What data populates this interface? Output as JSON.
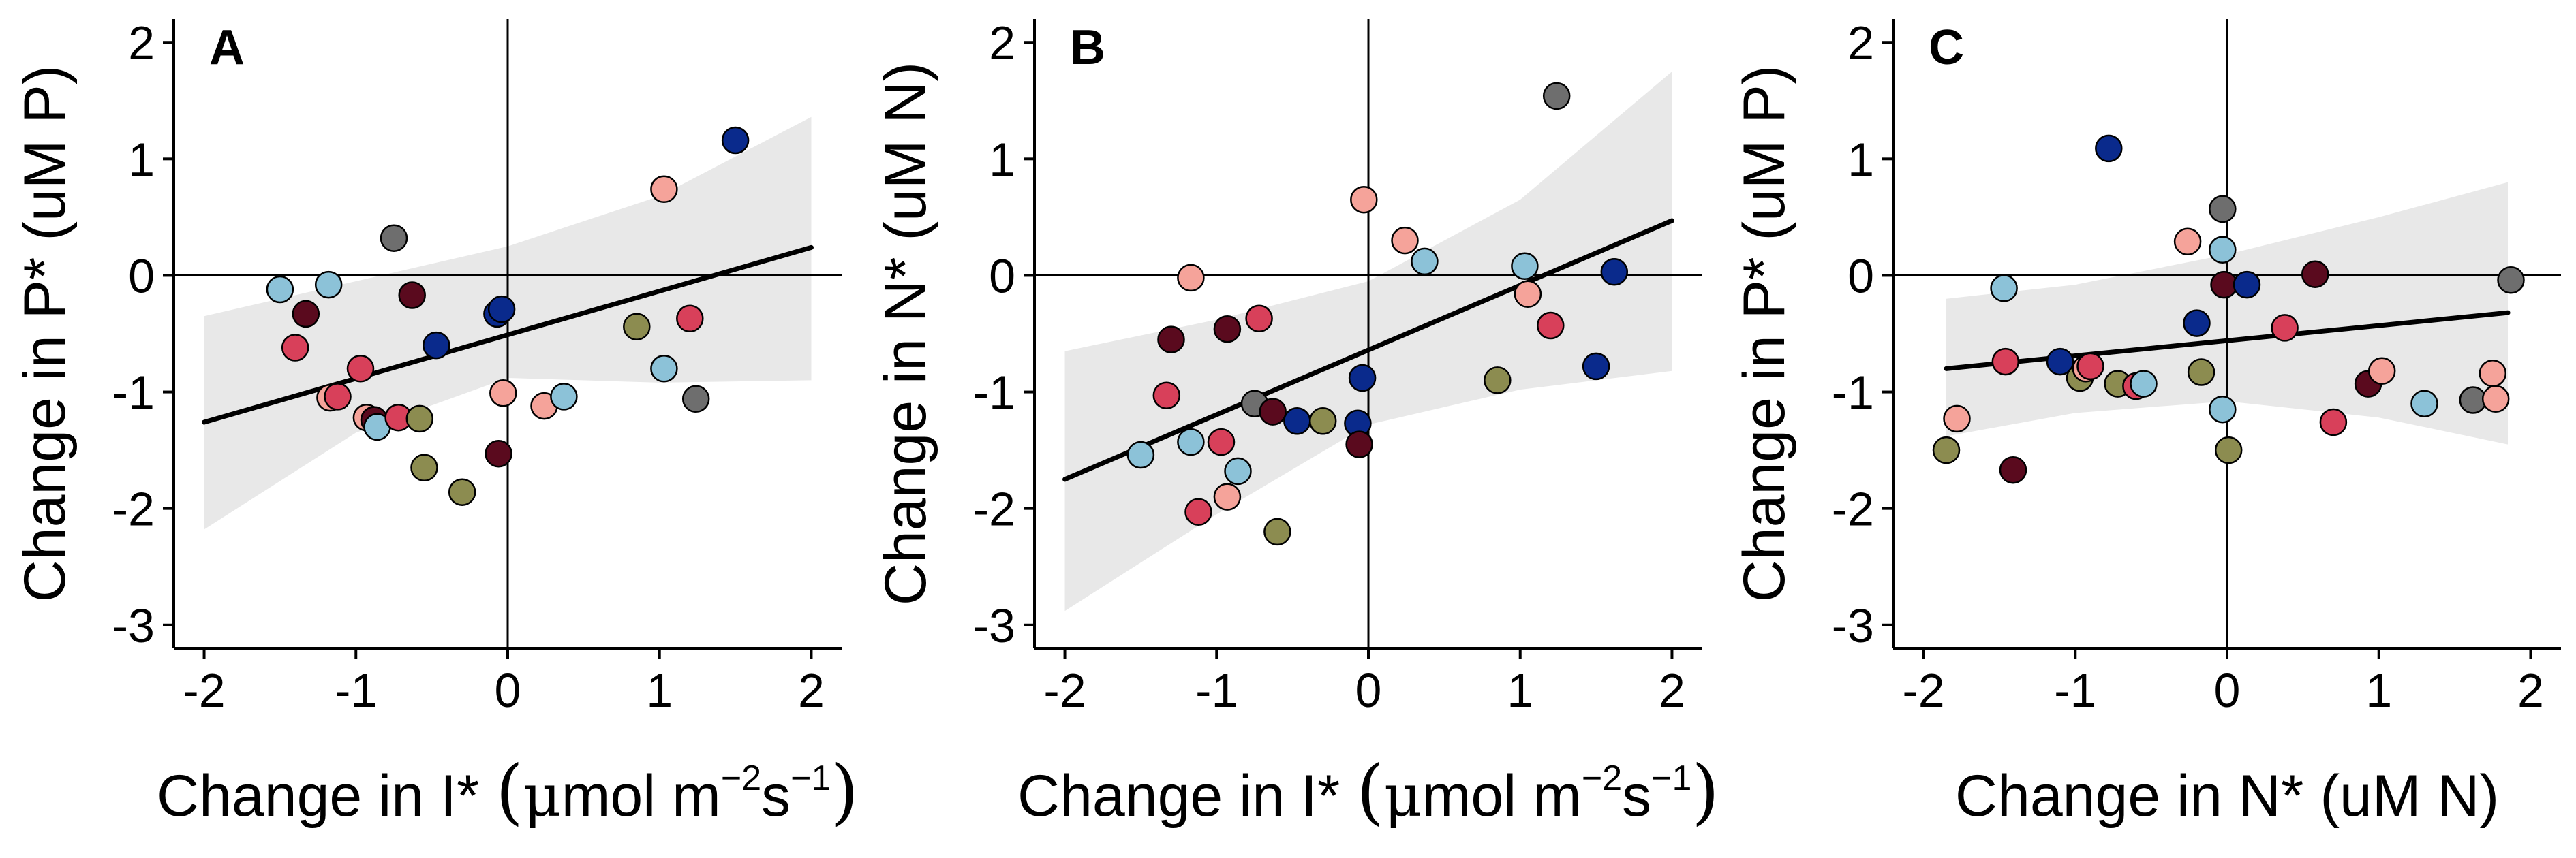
{
  "colors": {
    "olive": "#8c8c50",
    "navy": "#0a2a8c",
    "burgundy": "#5a0a1e",
    "grey": "#6e6e6e",
    "lightblue": "#8cc2d8",
    "salmon": "#f5a39a",
    "crimson": "#d8405a",
    "band": "#e8e8e8"
  },
  "chart_data": [
    {
      "type": "scatter",
      "panel": "A",
      "xlabel_parts": [
        "Change in I* ",
        "(",
        "μ",
        "mol m",
        "−2",
        "s",
        "−1",
        ")"
      ],
      "ylabel": "Change in P* (uM P)",
      "xlim": [
        -2.2,
        2.2
      ],
      "ylim": [
        -3.2,
        2.2
      ],
      "xticks": [
        -2,
        -1,
        0,
        1,
        2
      ],
      "yticks": [
        -3,
        -2,
        -1,
        0,
        1,
        2
      ],
      "tick_labels_x": [
        "-2",
        "-1",
        "0",
        "1",
        "2"
      ],
      "tick_labels_y": [
        "-3",
        "-2",
        "-1",
        "0",
        "1",
        "2"
      ],
      "fit": {
        "x": [
          -2.0,
          2.0
        ],
        "y": [
          -1.26,
          0.24
        ]
      },
      "band": {
        "x": [
          -2.0,
          -1.0,
          0.0,
          1.0,
          2.0
        ],
        "upper": [
          -0.35,
          -0.05,
          0.25,
          0.68,
          1.36
        ],
        "lower": [
          -2.18,
          -1.35,
          -0.88,
          -0.92,
          -0.9
        ]
      },
      "points": [
        {
          "x": -1.5,
          "y": -0.12,
          "c": "lightblue"
        },
        {
          "x": -1.18,
          "y": -0.08,
          "c": "lightblue"
        },
        {
          "x": -1.33,
          "y": -0.33,
          "c": "burgundy"
        },
        {
          "x": -1.4,
          "y": -0.62,
          "c": "crimson"
        },
        {
          "x": -0.75,
          "y": 0.32,
          "c": "grey"
        },
        {
          "x": -0.63,
          "y": -0.17,
          "c": "burgundy"
        },
        {
          "x": -1.17,
          "y": -1.05,
          "c": "salmon"
        },
        {
          "x": -1.12,
          "y": -1.04,
          "c": "crimson"
        },
        {
          "x": -0.97,
          "y": -0.8,
          "c": "crimson"
        },
        {
          "x": -0.93,
          "y": -1.22,
          "c": "salmon"
        },
        {
          "x": -0.88,
          "y": -1.24,
          "c": "burgundy"
        },
        {
          "x": -0.86,
          "y": -1.3,
          "c": "lightblue"
        },
        {
          "x": -0.72,
          "y": -1.22,
          "c": "crimson"
        },
        {
          "x": -0.58,
          "y": -1.23,
          "c": "olive"
        },
        {
          "x": -0.55,
          "y": -1.65,
          "c": "olive"
        },
        {
          "x": -0.47,
          "y": -0.6,
          "c": "navy"
        },
        {
          "x": -0.3,
          "y": -1.86,
          "c": "olive"
        },
        {
          "x": -0.07,
          "y": -0.33,
          "c": "navy"
        },
        {
          "x": -0.04,
          "y": -0.29,
          "c": "navy"
        },
        {
          "x": -0.06,
          "y": -1.53,
          "c": "burgundy"
        },
        {
          "x": -0.03,
          "y": -1.01,
          "c": "salmon"
        },
        {
          "x": 0.24,
          "y": -1.12,
          "c": "salmon"
        },
        {
          "x": 0.37,
          "y": -1.04,
          "c": "lightblue"
        },
        {
          "x": 0.85,
          "y": -0.44,
          "c": "olive"
        },
        {
          "x": 1.03,
          "y": 0.74,
          "c": "salmon"
        },
        {
          "x": 1.03,
          "y": -0.8,
          "c": "lightblue"
        },
        {
          "x": 1.2,
          "y": -0.37,
          "c": "crimson"
        },
        {
          "x": 1.24,
          "y": -1.06,
          "c": "grey"
        },
        {
          "x": 1.5,
          "y": 1.16,
          "c": "navy"
        }
      ]
    },
    {
      "type": "scatter",
      "panel": "B",
      "xlabel_parts": [
        "Change in I* ",
        "(",
        "μ",
        "mol m",
        "−2",
        "s",
        "−1",
        ")"
      ],
      "ylabel": "Change in N* (uM N)",
      "xlim": [
        -2.2,
        2.2
      ],
      "ylim": [
        -3.2,
        2.2
      ],
      "xticks": [
        -2,
        -1,
        0,
        1,
        2
      ],
      "yticks": [
        -3,
        -2,
        -1,
        0,
        1,
        2
      ],
      "tick_labels_x": [
        "-2",
        "-1",
        "0",
        "1",
        "2"
      ],
      "tick_labels_y": [
        "-3",
        "-2",
        "-1",
        "0",
        "1",
        "2"
      ],
      "fit": {
        "x": [
          -2.0,
          2.0
        ],
        "y": [
          -1.75,
          0.47
        ]
      },
      "band": {
        "x": [
          -2.0,
          -1.0,
          0.0,
          1.0,
          2.0
        ],
        "upper": [
          -0.65,
          -0.38,
          -0.05,
          0.65,
          1.75
        ],
        "lower": [
          -2.88,
          -2.05,
          -1.28,
          -0.98,
          -0.82
        ]
      },
      "points": [
        {
          "x": -1.5,
          "y": -1.54,
          "c": "lightblue"
        },
        {
          "x": -1.17,
          "y": -0.02,
          "c": "salmon"
        },
        {
          "x": -1.33,
          "y": -1.03,
          "c": "crimson"
        },
        {
          "x": -1.3,
          "y": -0.55,
          "c": "burgundy"
        },
        {
          "x": -1.17,
          "y": -1.43,
          "c": "lightblue"
        },
        {
          "x": -1.12,
          "y": -2.03,
          "c": "crimson"
        },
        {
          "x": -0.97,
          "y": -1.43,
          "c": "crimson"
        },
        {
          "x": -0.93,
          "y": -0.46,
          "c": "burgundy"
        },
        {
          "x": -0.93,
          "y": -1.9,
          "c": "salmon"
        },
        {
          "x": -0.86,
          "y": -1.68,
          "c": "lightblue"
        },
        {
          "x": -0.75,
          "y": -1.1,
          "c": "grey"
        },
        {
          "x": -0.72,
          "y": -0.37,
          "c": "crimson"
        },
        {
          "x": -0.63,
          "y": -1.17,
          "c": "burgundy"
        },
        {
          "x": -0.6,
          "y": -2.2,
          "c": "olive"
        },
        {
          "x": -0.47,
          "y": -1.25,
          "c": "navy"
        },
        {
          "x": -0.3,
          "y": -1.25,
          "c": "olive"
        },
        {
          "x": -0.07,
          "y": -1.27,
          "c": "navy"
        },
        {
          "x": -0.06,
          "y": -1.45,
          "c": "burgundy"
        },
        {
          "x": -0.04,
          "y": -0.88,
          "c": "navy"
        },
        {
          "x": -0.03,
          "y": 0.65,
          "c": "salmon"
        },
        {
          "x": 0.24,
          "y": 0.3,
          "c": "salmon"
        },
        {
          "x": 0.37,
          "y": 0.12,
          "c": "lightblue"
        },
        {
          "x": 0.85,
          "y": -0.9,
          "c": "olive"
        },
        {
          "x": 1.03,
          "y": 0.08,
          "c": "lightblue"
        },
        {
          "x": 1.05,
          "y": -0.16,
          "c": "salmon"
        },
        {
          "x": 1.2,
          "y": -0.43,
          "c": "crimson"
        },
        {
          "x": 1.24,
          "y": 1.54,
          "c": "grey"
        },
        {
          "x": 1.5,
          "y": -0.78,
          "c": "navy"
        },
        {
          "x": 1.62,
          "y": 0.03,
          "c": "navy"
        }
      ]
    },
    {
      "type": "scatter",
      "panel": "C",
      "xlabel_parts": [
        "Change in N* (uM N)"
      ],
      "ylabel": "Change in P* (uM P)",
      "xlim": [
        -2.2,
        2.2
      ],
      "ylim": [
        -3.2,
        2.2
      ],
      "xticks": [
        -2,
        -1,
        0,
        1,
        2
      ],
      "yticks": [
        -3,
        -2,
        -1,
        0,
        1,
        2
      ],
      "tick_labels_x": [
        "-2",
        "-1",
        "0",
        "1",
        "2"
      ],
      "tick_labels_y": [
        "-3",
        "-2",
        "-1",
        "0",
        "1",
        "2"
      ],
      "fit": {
        "x": [
          -1.85,
          1.85
        ],
        "y": [
          -0.8,
          -0.32
        ]
      },
      "band": {
        "x": [
          -1.85,
          -1.0,
          0.0,
          1.0,
          1.85
        ],
        "upper": [
          -0.2,
          -0.08,
          0.18,
          0.5,
          0.8
        ],
        "lower": [
          -1.38,
          -1.18,
          -1.08,
          -1.22,
          -1.45
        ]
      },
      "points": [
        {
          "x": -1.85,
          "y": -1.5,
          "c": "olive"
        },
        {
          "x": -1.78,
          "y": -1.23,
          "c": "salmon"
        },
        {
          "x": -1.47,
          "y": -0.11,
          "c": "lightblue"
        },
        {
          "x": -1.46,
          "y": -0.74,
          "c": "crimson"
        },
        {
          "x": -1.41,
          "y": -1.67,
          "c": "burgundy"
        },
        {
          "x": -1.1,
          "y": -0.74,
          "c": "navy"
        },
        {
          "x": -0.97,
          "y": -0.88,
          "c": "olive"
        },
        {
          "x": -0.93,
          "y": -0.8,
          "c": "salmon"
        },
        {
          "x": -0.9,
          "y": -0.78,
          "c": "crimson"
        },
        {
          "x": -0.78,
          "y": 1.09,
          "c": "navy"
        },
        {
          "x": -0.72,
          "y": -0.93,
          "c": "olive"
        },
        {
          "x": -0.6,
          "y": -0.95,
          "c": "crimson"
        },
        {
          "x": -0.55,
          "y": -0.93,
          "c": "lightblue"
        },
        {
          "x": -0.26,
          "y": 0.29,
          "c": "salmon"
        },
        {
          "x": -0.2,
          "y": -0.41,
          "c": "navy"
        },
        {
          "x": -0.17,
          "y": -0.83,
          "c": "olive"
        },
        {
          "x": -0.03,
          "y": 0.57,
          "c": "grey"
        },
        {
          "x": -0.03,
          "y": 0.22,
          "c": "lightblue"
        },
        {
          "x": -0.02,
          "y": -0.08,
          "c": "burgundy"
        },
        {
          "x": -0.03,
          "y": -1.15,
          "c": "lightblue"
        },
        {
          "x": 0.01,
          "y": -1.5,
          "c": "olive"
        },
        {
          "x": 0.13,
          "y": -0.08,
          "c": "navy"
        },
        {
          "x": 0.38,
          "y": -0.45,
          "c": "crimson"
        },
        {
          "x": 0.58,
          "y": 0.01,
          "c": "burgundy"
        },
        {
          "x": 0.7,
          "y": -1.26,
          "c": "crimson"
        },
        {
          "x": 0.93,
          "y": -0.93,
          "c": "burgundy"
        },
        {
          "x": 1.02,
          "y": -0.82,
          "c": "salmon"
        },
        {
          "x": 1.3,
          "y": -1.1,
          "c": "lightblue"
        },
        {
          "x": 1.62,
          "y": -1.07,
          "c": "grey"
        },
        {
          "x": 1.75,
          "y": -0.84,
          "c": "salmon"
        },
        {
          "x": 1.77,
          "y": -1.06,
          "c": "salmon"
        },
        {
          "x": 1.87,
          "y": -0.04,
          "c": "grey"
        }
      ]
    }
  ]
}
